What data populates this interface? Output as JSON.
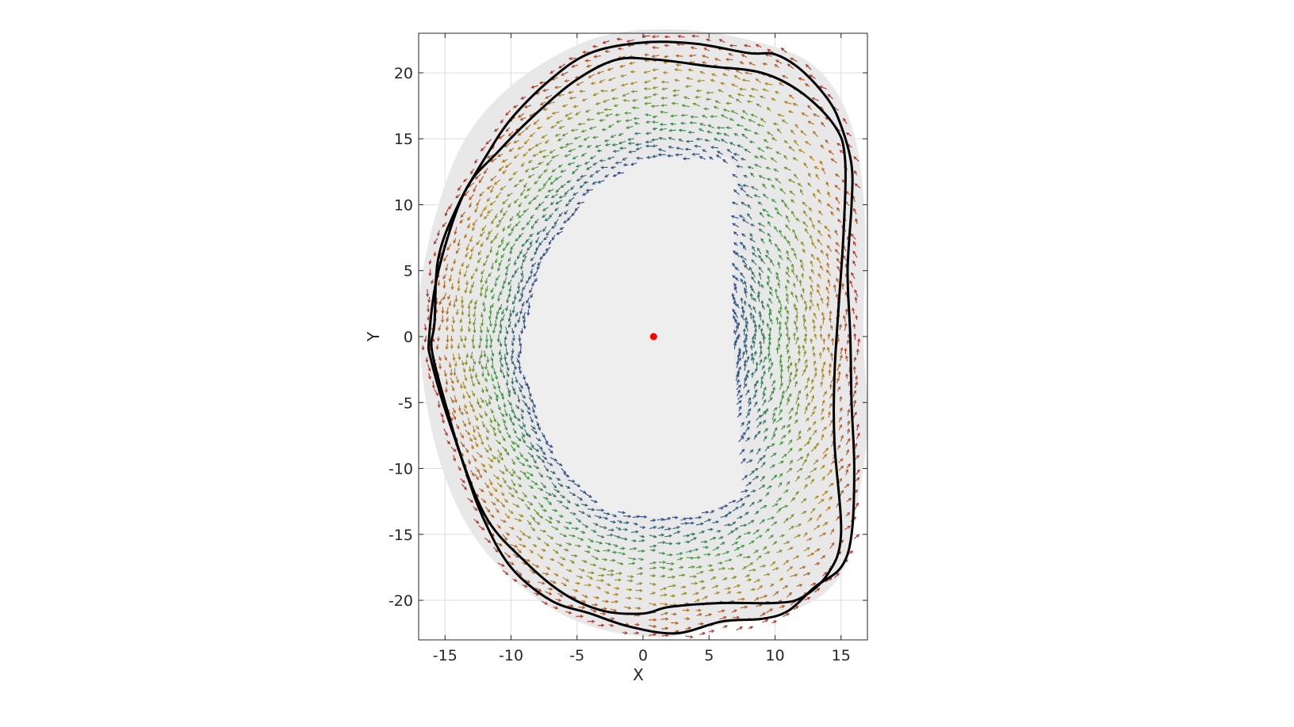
{
  "chart_data": {
    "type": "scatter",
    "subtype": "vector-field",
    "title": "",
    "xlabel": "X",
    "ylabel": "Y",
    "xlim": [
      -17,
      17
    ],
    "ylim": [
      -23,
      23
    ],
    "xticks": [
      -15,
      -10,
      -5,
      0,
      5,
      10,
      15
    ],
    "yticks": [
      -20,
      -15,
      -10,
      -5,
      0,
      5,
      10,
      15,
      20
    ],
    "xtick_labels": [
      "-15",
      "-10",
      "-5",
      "0",
      "5",
      "10",
      "15"
    ],
    "ytick_labels": [
      "-20",
      "-15",
      "-10",
      "-5",
      "0",
      "5",
      "10",
      "15",
      "20"
    ],
    "grid": true,
    "box": true,
    "colors": {
      "shaded_region": "#e8e8e8",
      "inner_region": "#eeeeee",
      "contour": "#000000",
      "center_marker": "#ff0000",
      "vector_inner": "#2e4a8c",
      "vector_mid": "#3f9a3f",
      "vector_outer_mid": "#b08a1e",
      "vector_outer": "#b02a2a"
    },
    "center_point": {
      "x": 0.8,
      "y": 0.0
    },
    "shaded_outline": [
      [
        -17,
        0
      ],
      [
        -16.5,
        6
      ],
      [
        -14,
        14
      ],
      [
        -10,
        19
      ],
      [
        -4,
        22.5
      ],
      [
        2,
        23.3
      ],
      [
        8,
        22.5
      ],
      [
        13,
        20.5
      ],
      [
        15.8,
        16
      ],
      [
        16.8,
        9
      ],
      [
        16.7,
        0
      ],
      [
        17,
        -7
      ],
      [
        16,
        -14
      ],
      [
        15,
        -18
      ],
      [
        12,
        -20.5
      ],
      [
        6,
        -21.8
      ],
      [
        1,
        -22.8
      ],
      [
        -5,
        -21.6
      ],
      [
        -10,
        -18.3
      ],
      [
        -13.5,
        -14
      ],
      [
        -15.8,
        -8
      ]
    ],
    "inner_boundary": [
      [
        -9.2,
        0
      ],
      [
        -7.5,
        6
      ],
      [
        -4,
        11
      ],
      [
        0,
        13.4
      ],
      [
        4,
        13.5
      ],
      [
        6.8,
        13.2
      ],
      [
        7,
        8
      ],
      [
        6.8,
        3
      ],
      [
        7,
        -3
      ],
      [
        7.5,
        -9
      ],
      [
        7.5,
        -12
      ],
      [
        5,
        -13.3
      ],
      [
        1,
        -13.7
      ],
      [
        -3,
        -13.1
      ],
      [
        -6.2,
        -10
      ],
      [
        -8,
        -6
      ],
      [
        -9.2,
        -2
      ]
    ],
    "contours": [
      {
        "points": [
          [
            -16.2,
            0
          ],
          [
            -15.5,
            5
          ],
          [
            -13.5,
            11
          ],
          [
            -11,
            14
          ],
          [
            -8,
            17
          ],
          [
            -5,
            19.5
          ],
          [
            -2,
            21
          ],
          [
            1,
            21
          ],
          [
            5,
            20.5
          ],
          [
            9,
            20
          ],
          [
            12,
            18.5
          ],
          [
            14.5,
            16
          ],
          [
            15.3,
            13.5
          ],
          [
            15.2,
            8
          ],
          [
            14.8,
            2
          ],
          [
            14.5,
            -3
          ],
          [
            14.5,
            -8
          ],
          [
            15,
            -15
          ],
          [
            14,
            -18
          ],
          [
            12,
            -19.8
          ],
          [
            10,
            -20.2
          ],
          [
            6,
            -20.2
          ],
          [
            2,
            -20.5
          ],
          [
            0,
            -21
          ],
          [
            -3,
            -20.8
          ],
          [
            -6,
            -19.5
          ],
          [
            -9,
            -17
          ],
          [
            -12,
            -13.5
          ],
          [
            -14.5,
            -7
          ],
          [
            -16,
            -2
          ]
        ]
      },
      {
        "points": [
          [
            -15.8,
            1
          ],
          [
            -15.5,
            6
          ],
          [
            -14,
            10
          ],
          [
            -12,
            13.5
          ],
          [
            -10,
            16.5
          ],
          [
            -7,
            19.5
          ],
          [
            -4,
            21.5
          ],
          [
            0,
            22.3
          ],
          [
            4,
            22.2
          ],
          [
            8,
            21.5
          ],
          [
            10,
            21.4
          ],
          [
            12,
            20.2
          ],
          [
            14,
            18
          ],
          [
            15,
            16
          ],
          [
            15.8,
            13
          ],
          [
            15.8,
            10
          ],
          [
            15.5,
            5
          ],
          [
            15.7,
            0
          ],
          [
            15.8,
            -5
          ],
          [
            16,
            -10
          ],
          [
            15.8,
            -15
          ],
          [
            15,
            -17.5
          ],
          [
            13,
            -19
          ],
          [
            11,
            -20.8
          ],
          [
            9,
            -21.4
          ],
          [
            6,
            -21.6
          ],
          [
            2.5,
            -22.5
          ],
          [
            -1,
            -22
          ],
          [
            -4,
            -21
          ],
          [
            -7,
            -20
          ],
          [
            -10,
            -17.5
          ],
          [
            -12,
            -14
          ],
          [
            -13.5,
            -10
          ],
          [
            -15,
            -5
          ],
          [
            -16,
            -1
          ]
        ]
      }
    ]
  }
}
